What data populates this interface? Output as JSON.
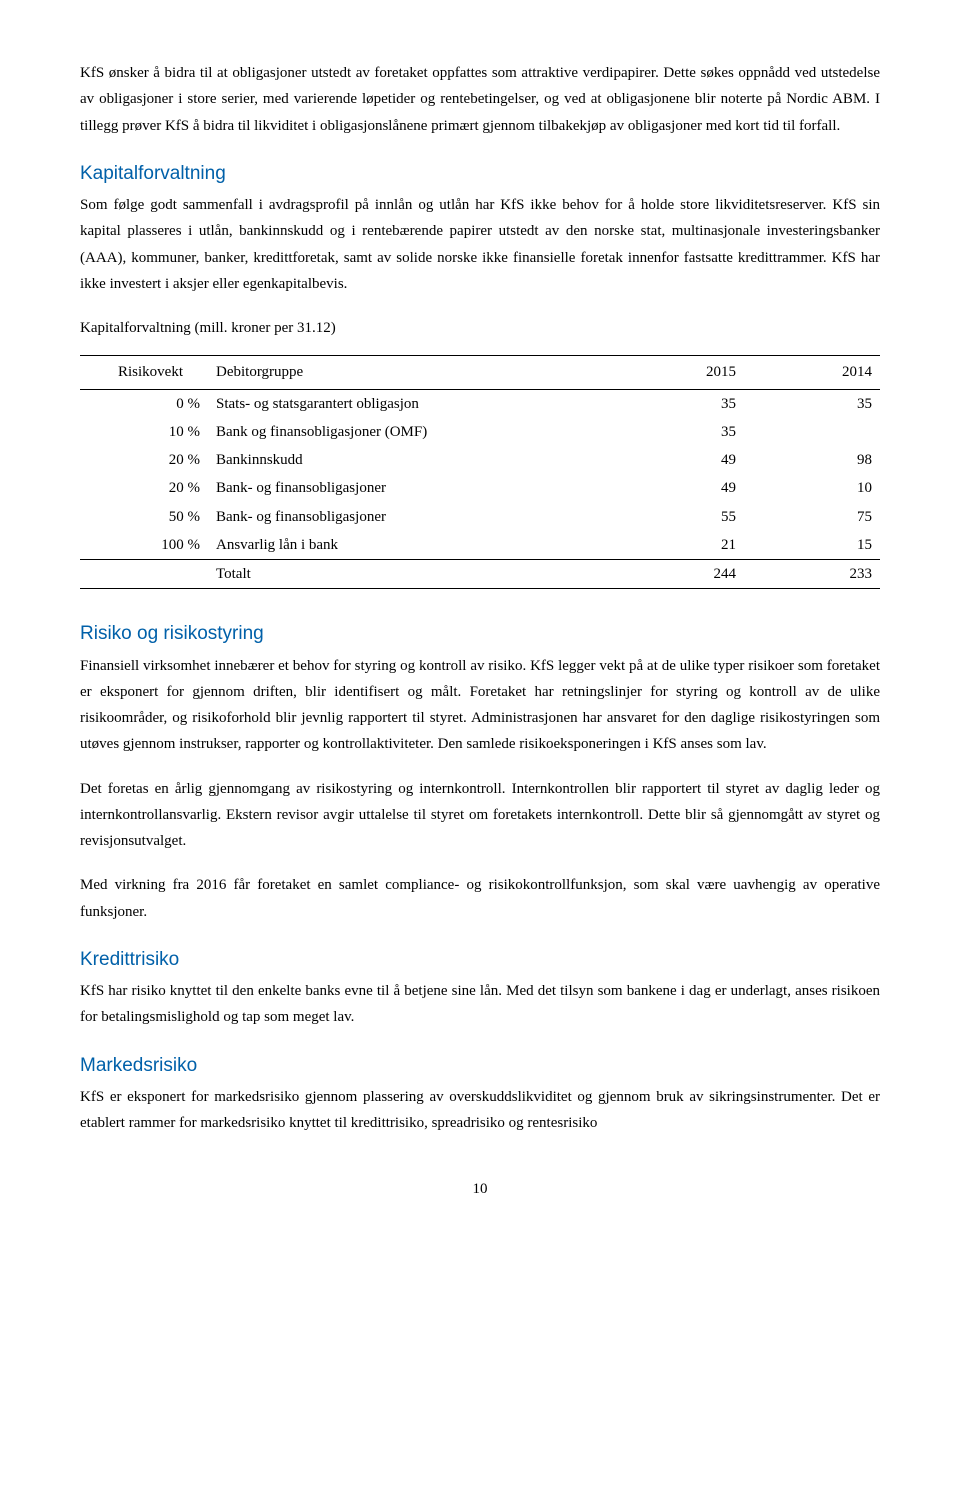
{
  "intro_para": "KfS ønsker å bidra til at obligasjoner utstedt av foretaket oppfattes som attraktive verdipapirer. Dette søkes oppnådd ved utstedelse av obligasjoner i store serier, med varierende løpetider og rentebetingelser, og ved at obligasjonene blir noterte på Nordic ABM. I tillegg prøver KfS å bidra til likviditet i obligasjonslånene primært gjennom tilbakekjøp av obligasjoner med kort tid til forfall.",
  "sections": {
    "kapitalforvaltning": {
      "title": "Kapitalforvaltning",
      "para": "Som følge godt sammenfall i avdragsprofil på innlån og utlån har KfS ikke behov for å holde store likviditetsreserver. KfS sin kapital plasseres i utlån, bankinnskudd og i rentebærende papirer utstedt av den norske stat, multinasjonale investeringsbanker (AAA), kommuner, banker, kredittforetak, samt av solide norske ikke finansielle foretak innenfor fastsatte kredittrammer. KfS har ikke investert i aksjer eller egenkapitalbevis.",
      "caption": "Kapitalforvaltning (mill. kroner per 31.12)",
      "table": {
        "columns": [
          "Risikovekt",
          "Debitorgruppe",
          "2015",
          "2014"
        ],
        "rows": [
          [
            "0 %",
            "Stats- og statsgarantert obligasjon",
            "35",
            "35"
          ],
          [
            "10 %",
            "Bank og finansobligasjoner  (OMF)",
            "35",
            ""
          ],
          [
            "20 %",
            "Bankinnskudd",
            "49",
            "98"
          ],
          [
            "20 %",
            "Bank- og finansobligasjoner",
            "49",
            "10"
          ],
          [
            "50 %",
            "Bank- og finansobligasjoner",
            "55",
            "75"
          ],
          [
            "100 %",
            "Ansvarlig lån i bank",
            "21",
            "15"
          ]
        ],
        "total": [
          "",
          "Totalt",
          "244",
          "233"
        ]
      }
    },
    "risiko": {
      "title": "Risiko og risikostyring",
      "para1": "Finansiell virksomhet innebærer et behov for styring og kontroll av risiko. KfS legger vekt på at de ulike typer risikoer som foretaket er eksponert for gjennom driften, blir identifisert og målt. Foretaket har retningslinjer for styring og kontroll av de ulike risikoområder, og risikoforhold blir jevnlig rapportert til styret. Administrasjonen har ansvaret for den daglige risikostyringen som utøves gjennom instrukser, rapporter og kontrollaktiviteter. Den samlede risikoeksponeringen i KfS anses som lav.",
      "para2": "Det foretas en årlig gjennomgang av risikostyring og internkontroll. Internkontrollen blir rapportert til styret av daglig leder og internkontrollansvarlig. Ekstern revisor avgir uttalelse til styret om foretakets internkontroll. Dette blir så gjennomgått av styret og revisjonsutvalget.",
      "para3": "Med virkning fra 2016 får foretaket en samlet compliance- og risikokontrollfunksjon, som skal være uavhengig av operative funksjoner."
    },
    "kredittrisiko": {
      "title": "Kredittrisiko",
      "para": "KfS har risiko knyttet til den enkelte banks evne til å betjene sine lån. Med det tilsyn som bankene i dag er underlagt, anses risikoen for betalingsmislighold og tap som meget lav."
    },
    "markedsrisiko": {
      "title": "Markedsrisiko",
      "para": "KfS er eksponert for markedsrisiko gjennom plassering av overskuddslikviditet og gjennom bruk av sikringsinstrumenter. Det er etablert rammer for markedsrisiko knyttet til kredittrisiko, spreadrisiko og rentesrisiko"
    }
  },
  "page_number": "10",
  "styling": {
    "heading_color": "#0060a9",
    "body_font": "Times New Roman",
    "heading_font": "Arial",
    "body_fontsize": 15,
    "heading_fontsize": 19,
    "background_color": "#ffffff",
    "text_color": "#000000"
  }
}
